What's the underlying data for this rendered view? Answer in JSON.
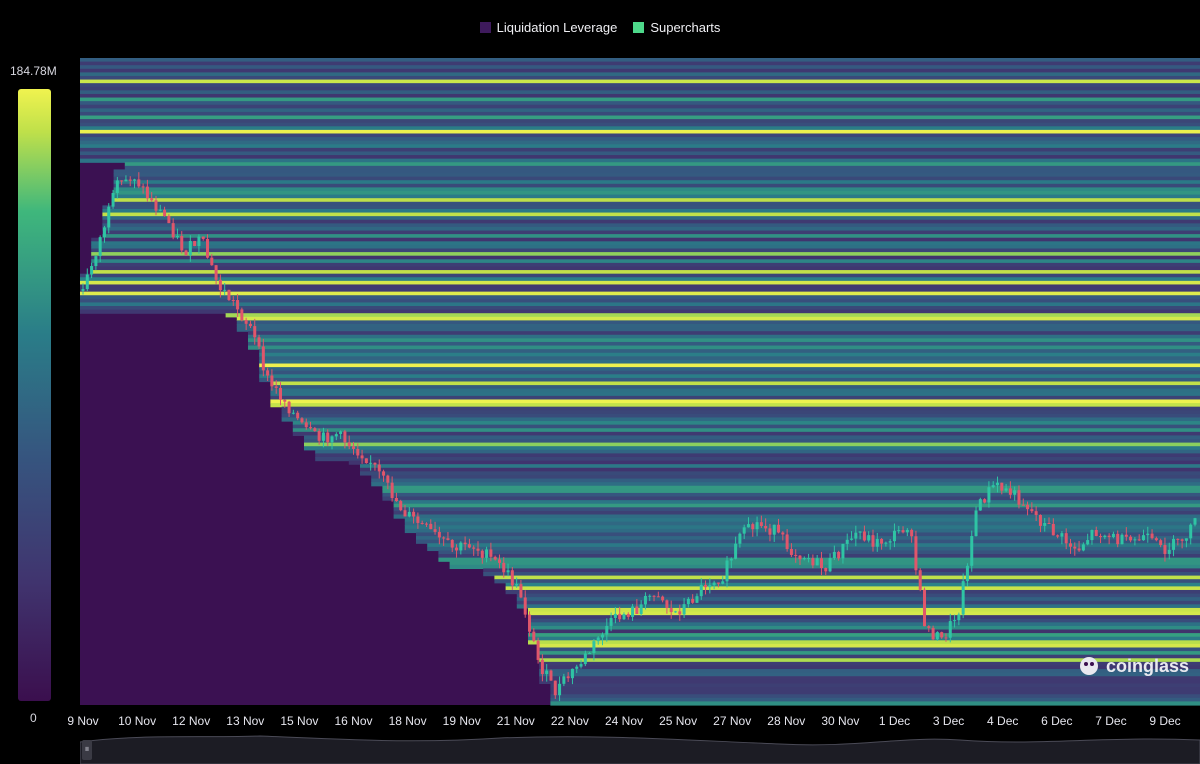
{
  "chart_data": {
    "type": "heatmap",
    "legend": [
      {
        "name": "Liquidation Leverage",
        "color": "#3e1a5c"
      },
      {
        "name": "Supercharts",
        "color": "#4dd88a"
      }
    ],
    "color_scale": {
      "min_label": "0",
      "max_label": "184.78M",
      "colors": [
        "#3b0f4e",
        "#40356f",
        "#36557f",
        "#2a7d88",
        "#3fb77c",
        "#bfe04a",
        "#f0f34f"
      ]
    },
    "x_ticks": [
      "9 Nov",
      "10 Nov",
      "12 Nov",
      "13 Nov",
      "15 Nov",
      "16 Nov",
      "18 Nov",
      "19 Nov",
      "21 Nov",
      "22 Nov",
      "24 Nov",
      "25 Nov",
      "27 Nov",
      "28 Nov",
      "30 Nov",
      "1 Dec",
      "3 Dec",
      "4 Dec",
      "6 Dec",
      "7 Dec",
      "9 Dec"
    ],
    "price_path": [
      0.36,
      0.28,
      0.2,
      0.18,
      0.22,
      0.25,
      0.3,
      0.28,
      0.35,
      0.38,
      0.42,
      0.5,
      0.53,
      0.57,
      0.59,
      0.58,
      0.6,
      0.62,
      0.66,
      0.7,
      0.72,
      0.74,
      0.76,
      0.75,
      0.77,
      0.79,
      0.83,
      0.93,
      0.98,
      0.95,
      0.92,
      0.88,
      0.86,
      0.85,
      0.82,
      0.86,
      0.84,
      0.81,
      0.8,
      0.74,
      0.72,
      0.73,
      0.76,
      0.77,
      0.79,
      0.76,
      0.73,
      0.75,
      0.74,
      0.72,
      0.88,
      0.9,
      0.85,
      0.7,
      0.66,
      0.67,
      0.69,
      0.72,
      0.74,
      0.76,
      0.73,
      0.74,
      0.75,
      0.74,
      0.76,
      0.75,
      0.72
    ]
  },
  "brand": {
    "name": "coinglass"
  }
}
